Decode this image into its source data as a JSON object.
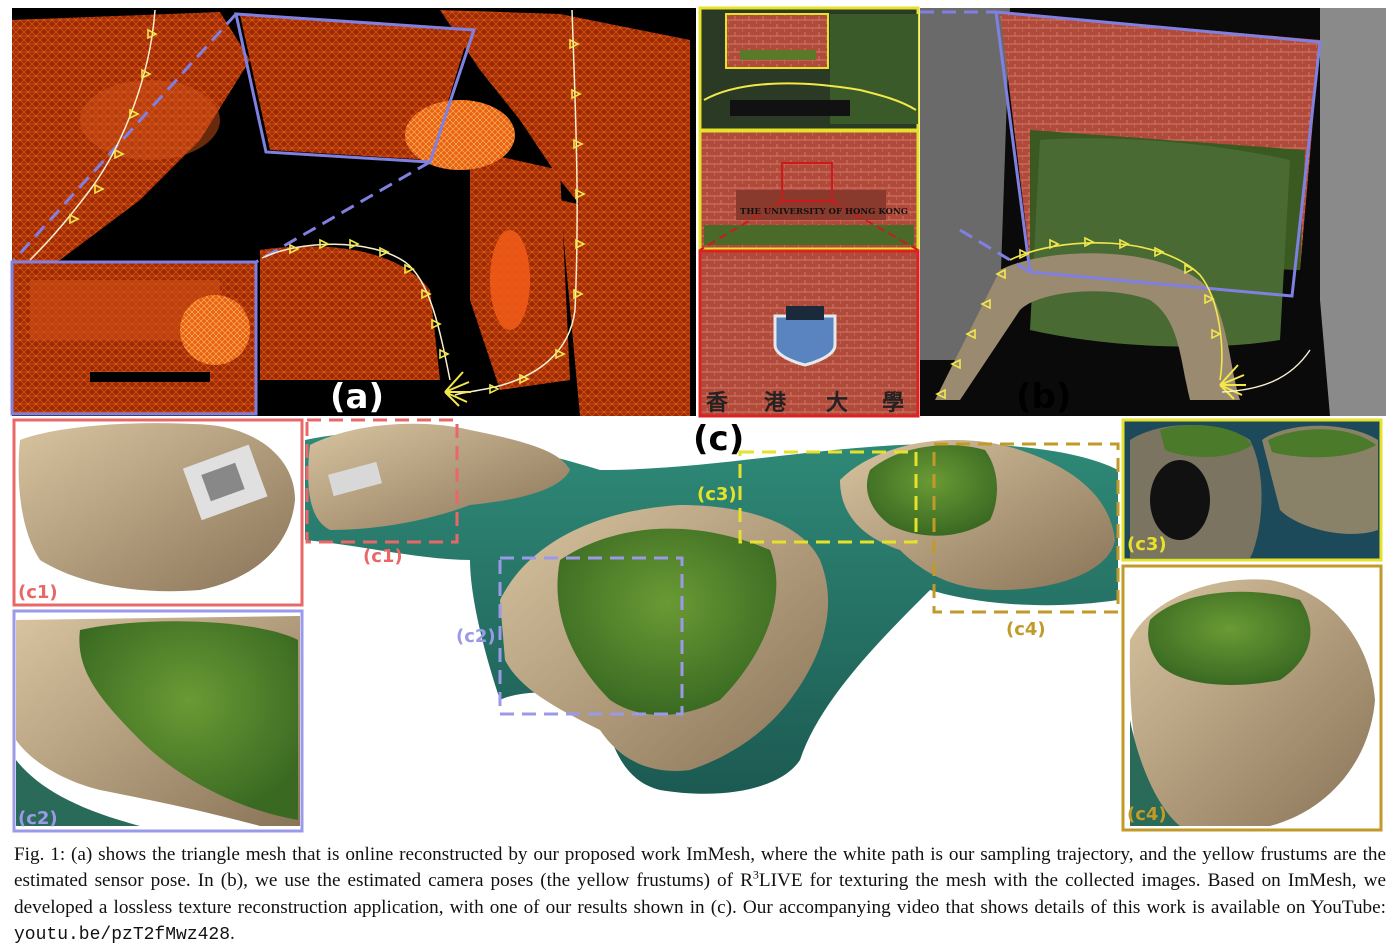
{
  "panels": {
    "a": {
      "label": "(a)"
    },
    "b": {
      "label": "(b)",
      "sign_text": "THE UNIVERSITY OF HONG KONG",
      "chinese_text": [
        "香",
        "港",
        "大",
        "學"
      ]
    },
    "c": {
      "label": "(c)",
      "insets": {
        "c1": "(c1)",
        "c2": "(c2)",
        "c3": "(c3)",
        "c4": "(c4)"
      }
    }
  },
  "colors": {
    "c1": "#e8686a",
    "c2": "#9a9ae8",
    "c3": "#e6e22a",
    "c4": "#c29a2a",
    "frame_blue": "#8080e0",
    "frustum_yellow": "#f2e84a"
  },
  "caption": {
    "fig_label": "Fig. 1:",
    "text_1": "(a) shows the triangle mesh that is online reconstructed by our proposed work ImMesh, where the white path is our sampling trajectory, and the yellow frustums are the estimated sensor pose. In (b), we use the estimated camera poses (the yellow frustums) of R",
    "sup": "3",
    "text_2": "LIVE for texturing the mesh with the collected images. Based on ImMesh, we developed a lossless texture reconstruction application, with one of our results shown in (c). Our accompanying video that shows details of this work is available on YouTube: ",
    "link": "youtu.be/pzT2fMwz428",
    "end": "."
  }
}
